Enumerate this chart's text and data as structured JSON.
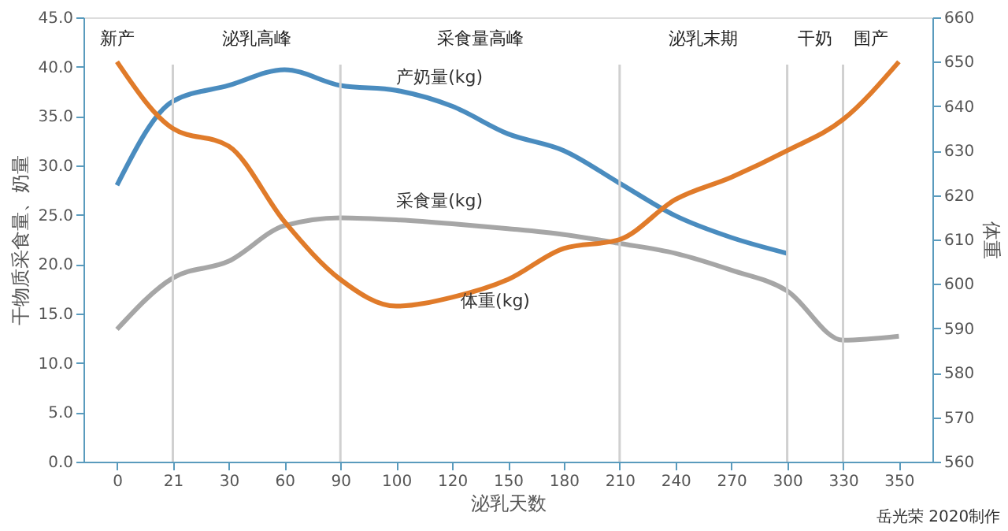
{
  "chart_data": {
    "type": "line",
    "xlabel": "泌乳天数",
    "ylabel": "干物质采食量、奶量",
    "y2label": "体重",
    "categories": [
      "0",
      "21",
      "30",
      "60",
      "90",
      "100",
      "120",
      "150",
      "180",
      "210",
      "240",
      "270",
      "300",
      "330",
      "350"
    ],
    "series": [
      {
        "name": "产奶量(kg)",
        "color": "#4a8cbf",
        "values": [
          28.0,
          36.5,
          38.1,
          39.7,
          38.1,
          37.6,
          36.0,
          33.2,
          31.5,
          28.2,
          24.9,
          22.7,
          21.1,
          null,
          null
        ]
      },
      {
        "name": "采食量(kg)",
        "color": "#a6a6a6",
        "values": [
          13.4,
          18.6,
          20.3,
          23.9,
          24.7,
          24.5,
          24.1,
          23.6,
          23.0,
          22.1,
          21.1,
          19.4,
          17.3,
          12.3,
          12.7
        ]
      },
      {
        "name": "体重(kg)",
        "color": "#e07b2a",
        "axis": "y2",
        "values": [
          650,
          635,
          631,
          614,
          601,
          595,
          597,
          601,
          608,
          610,
          619,
          624,
          630,
          637,
          650
        ]
      }
    ],
    "ylim": [
      0,
      45
    ],
    "yticks": [
      {
        "value": 0,
        "label": "0.0"
      },
      {
        "value": 5,
        "label": "5.0"
      },
      {
        "value": 10,
        "label": "10.0"
      },
      {
        "value": 15,
        "label": "15.0"
      },
      {
        "value": 20,
        "label": "20.0"
      },
      {
        "value": 25,
        "label": "25.0"
      },
      {
        "value": 30,
        "label": "30.0"
      },
      {
        "value": 35,
        "label": "35.0"
      },
      {
        "value": 40,
        "label": "40.0"
      },
      {
        "value": 45,
        "label": "45.0"
      }
    ],
    "y2lim": [
      560,
      660
    ],
    "y2ticks": [
      560,
      570,
      580,
      590,
      600,
      610,
      620,
      630,
      640,
      650,
      660
    ],
    "ref_lines": [
      {
        "axis": "x",
        "value": "21",
        "color": "#d0d0d0"
      },
      {
        "axis": "x",
        "value": "90",
        "color": "#d0d0d0"
      },
      {
        "axis": "x",
        "value": "210",
        "color": "#d0d0d0"
      },
      {
        "axis": "x",
        "value": "300",
        "color": "#d0d0d0"
      },
      {
        "axis": "x",
        "value": "330",
        "color": "#d0d0d0"
      }
    ],
    "annotations": [
      "新产",
      "泌乳高峰",
      "采食量高峰",
      "泌乳末期",
      "干奶",
      "围产",
      "岳光荣 2020制作"
    ],
    "grid": false,
    "legend": false,
    "marker": "none",
    "line_style": "solid"
  }
}
